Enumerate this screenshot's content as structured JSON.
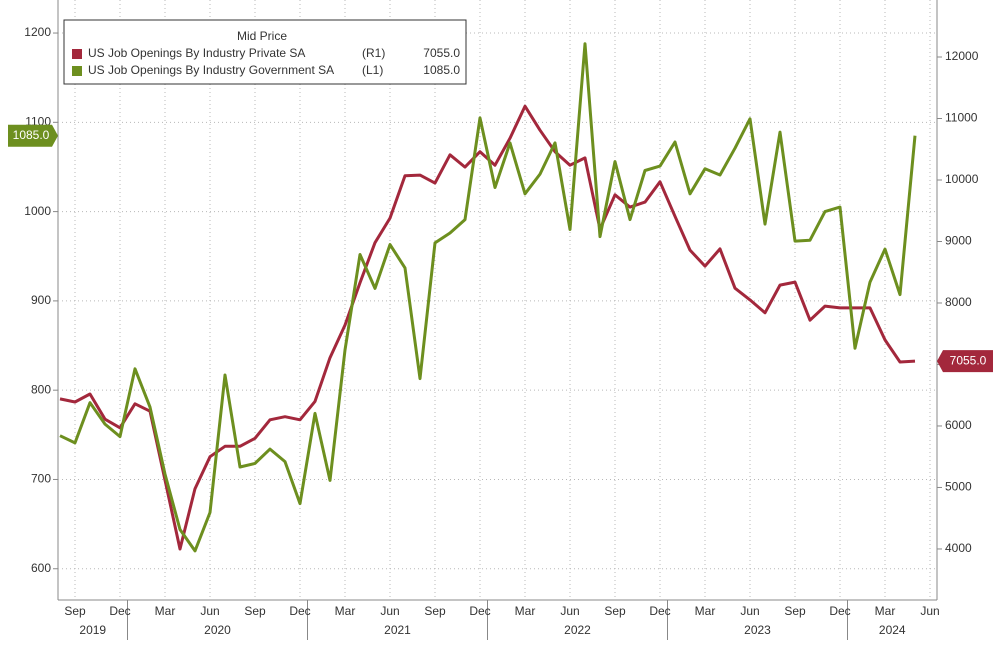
{
  "chart_data": {
    "type": "line",
    "legend_title": "Mid Price",
    "legend_position": "upper left",
    "grid": true,
    "x": [
      "2019-08",
      "2019-09",
      "2019-10",
      "2019-11",
      "2019-12",
      "2020-01",
      "2020-02",
      "2020-03",
      "2020-04",
      "2020-05",
      "2020-06",
      "2020-07",
      "2020-08",
      "2020-09",
      "2020-10",
      "2020-11",
      "2020-12",
      "2021-01",
      "2021-02",
      "2021-03",
      "2021-04",
      "2021-05",
      "2021-06",
      "2021-07",
      "2021-08",
      "2021-09",
      "2021-10",
      "2021-11",
      "2021-12",
      "2022-01",
      "2022-02",
      "2022-03",
      "2022-04",
      "2022-05",
      "2022-06",
      "2022-07",
      "2022-08",
      "2022-09",
      "2022-10",
      "2022-11",
      "2022-12",
      "2023-01",
      "2023-02",
      "2023-03",
      "2023-04",
      "2023-05",
      "2023-06",
      "2023-07",
      "2023-08",
      "2023-09",
      "2023-10",
      "2023-11",
      "2023-12",
      "2024-01",
      "2024-02",
      "2024-03",
      "2024-04",
      "2024-05"
    ],
    "xlim": [
      "2019-08",
      "2024-06"
    ],
    "xticks": [
      {
        "value": "2019-09",
        "label": "Sep"
      },
      {
        "value": "2019-12",
        "label": "Dec"
      },
      {
        "value": "2020-03",
        "label": "Mar"
      },
      {
        "value": "2020-06",
        "label": "Jun"
      },
      {
        "value": "2020-09",
        "label": "Sep"
      },
      {
        "value": "2020-12",
        "label": "Dec"
      },
      {
        "value": "2021-03",
        "label": "Mar"
      },
      {
        "value": "2021-06",
        "label": "Jun"
      },
      {
        "value": "2021-09",
        "label": "Sep"
      },
      {
        "value": "2021-12",
        "label": "Dec"
      },
      {
        "value": "2022-03",
        "label": "Mar"
      },
      {
        "value": "2022-06",
        "label": "Jun"
      },
      {
        "value": "2022-09",
        "label": "Sep"
      },
      {
        "value": "2022-12",
        "label": "Dec"
      },
      {
        "value": "2023-03",
        "label": "Mar"
      },
      {
        "value": "2023-06",
        "label": "Jun"
      },
      {
        "value": "2023-09",
        "label": "Sep"
      },
      {
        "value": "2023-12",
        "label": "Dec"
      },
      {
        "value": "2024-03",
        "label": "Mar"
      },
      {
        "value": "2024-06",
        "label": "Jun"
      }
    ],
    "years": [
      2019,
      2020,
      2021,
      2022,
      2023,
      2024
    ],
    "ylim": [
      565,
      1237
    ],
    "yticks": [
      600,
      700,
      800,
      900,
      1000,
      1100,
      1200
    ],
    "y2lim": [
      3170,
      12927
    ],
    "y2ticks": [
      4000,
      5000,
      6000,
      7000,
      8000,
      9000,
      10000,
      11000,
      12000
    ],
    "series": [
      {
        "name": "US Job Openings By Industry Private SA",
        "axis_tag": "(R1)",
        "axis": "y2",
        "color": "#a3283c",
        "values": [
          6440,
          6390,
          6520,
          6110,
          5970,
          6360,
          6240,
          5120,
          4000,
          4980,
          5500,
          5670,
          5670,
          5800,
          6100,
          6150,
          6100,
          6400,
          7110,
          7640,
          8330,
          8980,
          9380,
          10070,
          10080,
          9950,
          10410,
          10210,
          10460,
          10240,
          10680,
          11200,
          10810,
          10460,
          10240,
          10360,
          9200,
          9760,
          9560,
          9640,
          9970,
          9410,
          8860,
          8600,
          8880,
          8240,
          8050,
          7840,
          8290,
          8340,
          7720,
          7950,
          7920,
          7920,
          7920,
          7400,
          7040,
          7055
        ],
        "value_labels": [
          null,
          null,
          null,
          null,
          null,
          null,
          null,
          null,
          null,
          null,
          null,
          null,
          null,
          null,
          null,
          null,
          null,
          null,
          null,
          null,
          null,
          null,
          null,
          null,
          null,
          null,
          null,
          null,
          null,
          null,
          null,
          null,
          null,
          null,
          null,
          null,
          null,
          null,
          null,
          null,
          null,
          null,
          null,
          null,
          null,
          null,
          null,
          null,
          null,
          null,
          null,
          null,
          null,
          null,
          null,
          null,
          null,
          "7055.0"
        ]
      },
      {
        "name": "US Job Openings By Industry Government SA",
        "axis_tag": "(L1)",
        "axis": "y",
        "color": "#6d8f1f",
        "values": [
          749,
          741,
          786,
          762,
          748,
          824,
          781,
          706,
          644,
          620,
          663,
          817,
          714,
          718,
          734,
          720,
          673,
          774,
          699,
          845,
          952,
          914,
          963,
          937,
          813,
          965,
          976,
          991,
          1105,
          1027,
          1077,
          1020,
          1042,
          1077,
          980,
          1188,
          972,
          1056,
          991,
          1046,
          1051,
          1078,
          1020,
          1048,
          1041,
          1071,
          1104,
          986,
          1089,
          967,
          968,
          1000,
          1005,
          847,
          921,
          958,
          907,
          1085
        ],
        "value_labels": [
          null,
          null,
          null,
          null,
          null,
          null,
          null,
          null,
          null,
          null,
          null,
          null,
          null,
          null,
          null,
          null,
          null,
          null,
          null,
          null,
          null,
          null,
          null,
          null,
          null,
          null,
          null,
          null,
          null,
          null,
          null,
          null,
          null,
          null,
          null,
          null,
          null,
          null,
          null,
          null,
          null,
          null,
          null,
          null,
          null,
          null,
          null,
          null,
          null,
          null,
          null,
          null,
          null,
          null,
          null,
          null,
          null,
          "1085.0"
        ]
      }
    ]
  }
}
